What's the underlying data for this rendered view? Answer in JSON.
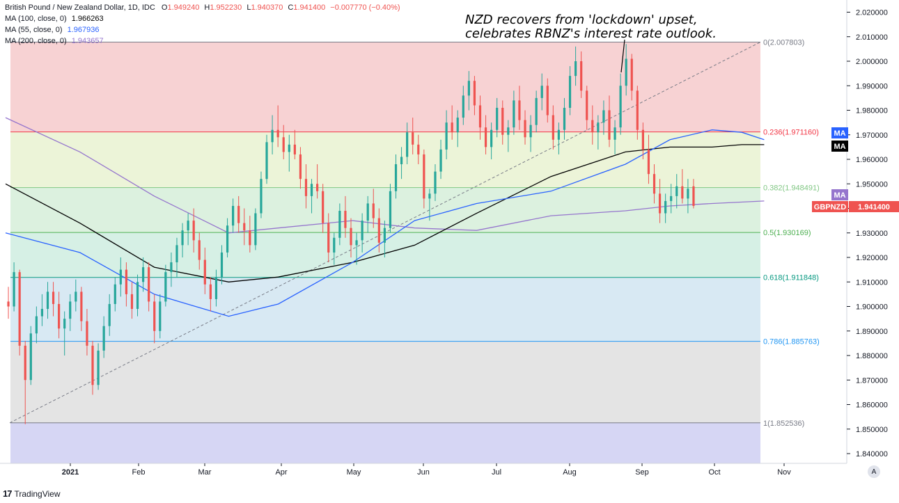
{
  "header": {
    "title": "British Pound / New Zealand Dollar, 1D, IDC",
    "ohlc": [
      {
        "label": "O",
        "value": "1.949240"
      },
      {
        "label": "H",
        "value": "1.952230"
      },
      {
        "label": "L",
        "value": "1.940370"
      },
      {
        "label": "C",
        "value": "1.941400"
      }
    ],
    "change": "−0.007770 (−0.40%)"
  },
  "indicators": [
    {
      "label": "MA (100, close, 0)",
      "value": "1.966263",
      "color": "#000000"
    },
    {
      "label": "MA (55, close, 0)",
      "value": "1.967936",
      "color": "#2962ff"
    },
    {
      "label": "MA (200, close, 0)",
      "value": "1.943657",
      "color": "#9575cd"
    }
  ],
  "annotation": {
    "line1": "NZD recovers from 'lockdown' upset,",
    "line2": "celebrates RBNZ's interest rate outlook."
  },
  "price_tags": {
    "ma_blue": "MA",
    "ma_black": "MA",
    "ma_purple": "MA",
    "symbol": "GBPNZD",
    "last": "1.941400"
  },
  "footer": {
    "brand": "TradingView",
    "auto_button": "A"
  },
  "colors": {
    "up": "#26a69a",
    "down": "#ef5350",
    "ma55": "#2962ff",
    "ma100": "#000000",
    "ma200": "#9575cd"
  },
  "chart_data": {
    "type": "candlestick",
    "symbol": "GBPNZD",
    "timeframe": "1D",
    "ylim": [
      1.836,
      2.022
    ],
    "y_ticks": [
      "2.020000",
      "2.010000",
      "2.000000",
      "1.990000",
      "1.980000",
      "1.970000",
      "1.960000",
      "1.950000",
      "1.940000",
      "1.930000",
      "1.920000",
      "1.910000",
      "1.900000",
      "1.890000",
      "1.880000",
      "1.870000",
      "1.860000",
      "1.850000",
      "1.840000"
    ],
    "x_ticks": [
      "2021",
      "Feb",
      "Mar",
      "Apr",
      "May",
      "Jun",
      "Jul",
      "Aug",
      "Sep",
      "Oct",
      "Nov"
    ],
    "fibonacci": [
      {
        "level": "0",
        "price": 2.007803,
        "label": "0(2.007803)",
        "color": "#787b86"
      },
      {
        "level": "0.236",
        "price": 1.97116,
        "label": "0.236(1.971160)",
        "color": "#f23645"
      },
      {
        "level": "0.382",
        "price": 1.948491,
        "label": "0.382(1.948491)",
        "color": "#81c784"
      },
      {
        "level": "0.5",
        "price": 1.930169,
        "label": "0.5(1.930169)",
        "color": "#4caf50"
      },
      {
        "level": "0.618",
        "price": 1.911848,
        "label": "0.618(1.911848)",
        "color": "#089981"
      },
      {
        "level": "0.786",
        "price": 1.885763,
        "label": "0.786(1.885763)",
        "color": "#2196f3"
      },
      {
        "level": "1",
        "price": 1.852536,
        "label": "1(1.852536)",
        "color": "#787b86"
      }
    ],
    "ma55_path": [
      [
        0,
        1.93
      ],
      [
        30,
        1.922
      ],
      [
        60,
        1.905
      ],
      [
        90,
        1.896
      ],
      [
        110,
        1.901
      ],
      [
        140,
        1.918
      ],
      [
        165,
        1.935
      ],
      [
        190,
        1.942
      ],
      [
        220,
        1.947
      ],
      [
        250,
        1.958
      ],
      [
        268,
        1.968
      ],
      [
        285,
        1.972
      ],
      [
        297,
        1.971
      ],
      [
        306,
        1.968
      ]
    ],
    "ma100_path": [
      [
        0,
        1.95
      ],
      [
        30,
        1.934
      ],
      [
        60,
        1.916
      ],
      [
        90,
        1.91
      ],
      [
        110,
        1.912
      ],
      [
        140,
        1.918
      ],
      [
        165,
        1.925
      ],
      [
        190,
        1.938
      ],
      [
        220,
        1.953
      ],
      [
        250,
        1.963
      ],
      [
        268,
        1.965
      ],
      [
        285,
        1.965
      ],
      [
        297,
        1.966
      ],
      [
        306,
        1.966
      ]
    ],
    "ma200_path": [
      [
        0,
        1.977
      ],
      [
        30,
        1.963
      ],
      [
        60,
        1.945
      ],
      [
        90,
        1.93
      ],
      [
        110,
        1.932
      ],
      [
        140,
        1.935
      ],
      [
        165,
        1.932
      ],
      [
        190,
        1.931
      ],
      [
        220,
        1.937
      ],
      [
        250,
        1.939
      ],
      [
        268,
        1.941
      ],
      [
        285,
        1.942
      ],
      [
        306,
        1.943
      ]
    ],
    "trendline": [
      [
        0,
        1.852536
      ],
      [
        306,
        2.007803
      ]
    ],
    "candles": [
      [
        1.902,
        1.908,
        1.895,
        1.9
      ],
      [
        1.9,
        1.918,
        1.898,
        1.914
      ],
      [
        1.914,
        1.915,
        1.88,
        1.884
      ],
      [
        1.884,
        1.886,
        1.852,
        1.87
      ],
      [
        1.87,
        1.892,
        1.868,
        1.889
      ],
      [
        1.889,
        1.9,
        1.885,
        1.896
      ],
      [
        1.896,
        1.905,
        1.892,
        1.899
      ],
      [
        1.899,
        1.91,
        1.895,
        1.906
      ],
      [
        1.906,
        1.91,
        1.896,
        1.901
      ],
      [
        1.901,
        1.906,
        1.887,
        1.891
      ],
      [
        1.891,
        1.898,
        1.88,
        1.895
      ],
      [
        1.895,
        1.905,
        1.89,
        1.902
      ],
      [
        1.902,
        1.911,
        1.898,
        1.906
      ],
      [
        1.906,
        1.908,
        1.89,
        1.894
      ],
      [
        1.894,
        1.899,
        1.88,
        1.884
      ],
      [
        1.884,
        1.886,
        1.864,
        1.868
      ],
      [
        1.868,
        1.885,
        1.866,
        1.882
      ],
      [
        1.882,
        1.896,
        1.879,
        1.892
      ],
      [
        1.892,
        1.905,
        1.888,
        1.901
      ],
      [
        1.901,
        1.912,
        1.898,
        1.909
      ],
      [
        1.909,
        1.92,
        1.904,
        1.915
      ],
      [
        1.915,
        1.918,
        1.9,
        1.905
      ],
      [
        1.905,
        1.91,
        1.895,
        1.899
      ],
      [
        1.899,
        1.913,
        1.896,
        1.91
      ],
      [
        1.91,
        1.92,
        1.906,
        1.916
      ],
      [
        1.916,
        1.918,
        1.898,
        1.902
      ],
      [
        1.902,
        1.905,
        1.885,
        1.89
      ],
      [
        1.89,
        1.905,
        1.887,
        1.902
      ],
      [
        1.902,
        1.917,
        1.9,
        1.914
      ],
      [
        1.914,
        1.922,
        1.908,
        1.918
      ],
      [
        1.918,
        1.928,
        1.912,
        1.925
      ],
      [
        1.925,
        1.934,
        1.92,
        1.931
      ],
      [
        1.931,
        1.938,
        1.925,
        1.935
      ],
      [
        1.935,
        1.94,
        1.922,
        1.927
      ],
      [
        1.927,
        1.93,
        1.915,
        1.919
      ],
      [
        1.919,
        1.924,
        1.905,
        1.909
      ],
      [
        1.909,
        1.912,
        1.898,
        1.903
      ],
      [
        1.903,
        1.915,
        1.9,
        1.912
      ],
      [
        1.912,
        1.925,
        1.909,
        1.922
      ],
      [
        1.922,
        1.936,
        1.92,
        1.933
      ],
      [
        1.933,
        1.944,
        1.93,
        1.941
      ],
      [
        1.941,
        1.945,
        1.93,
        1.934
      ],
      [
        1.934,
        1.94,
        1.925,
        1.931
      ],
      [
        1.931,
        1.937,
        1.922,
        1.925
      ],
      [
        1.925,
        1.94,
        1.923,
        1.938
      ],
      [
        1.938,
        1.955,
        1.936,
        1.952
      ],
      [
        1.952,
        1.97,
        1.95,
        1.967
      ],
      [
        1.967,
        1.978,
        1.962,
        1.972
      ],
      [
        1.972,
        1.982,
        1.965,
        1.969
      ],
      [
        1.969,
        1.974,
        1.96,
        1.963
      ],
      [
        1.963,
        1.97,
        1.955,
        1.966
      ],
      [
        1.966,
        1.972,
        1.96,
        1.962
      ],
      [
        1.962,
        1.965,
        1.948,
        1.952
      ],
      [
        1.952,
        1.958,
        1.94,
        1.945
      ],
      [
        1.945,
        1.952,
        1.938,
        1.95
      ],
      [
        1.95,
        1.958,
        1.944,
        1.947
      ],
      [
        1.947,
        1.95,
        1.93,
        1.934
      ],
      [
        1.934,
        1.938,
        1.918,
        1.922
      ],
      [
        1.922,
        1.93,
        1.917,
        1.928
      ],
      [
        1.928,
        1.942,
        1.925,
        1.939
      ],
      [
        1.939,
        1.945,
        1.928,
        1.932
      ],
      [
        1.932,
        1.936,
        1.92,
        1.925
      ],
      [
        1.925,
        1.93,
        1.917,
        1.927
      ],
      [
        1.927,
        1.938,
        1.922,
        1.935
      ],
      [
        1.935,
        1.945,
        1.93,
        1.942
      ],
      [
        1.942,
        1.948,
        1.932,
        1.936
      ],
      [
        1.936,
        1.94,
        1.922,
        1.926
      ],
      [
        1.926,
        1.935,
        1.92,
        1.932
      ],
      [
        1.932,
        1.95,
        1.93,
        1.947
      ],
      [
        1.947,
        1.962,
        1.944,
        1.958
      ],
      [
        1.958,
        1.965,
        1.952,
        1.961
      ],
      [
        1.961,
        1.975,
        1.958,
        1.971
      ],
      [
        1.971,
        1.977,
        1.962,
        1.966
      ],
      [
        1.966,
        1.97,
        1.958,
        1.962
      ],
      [
        1.962,
        1.964,
        1.94,
        1.944
      ],
      [
        1.944,
        1.948,
        1.935,
        1.946
      ],
      [
        1.946,
        1.958,
        1.943,
        1.955
      ],
      [
        1.955,
        1.968,
        1.952,
        1.964
      ],
      [
        1.964,
        1.98,
        1.96,
        1.975
      ],
      [
        1.975,
        1.982,
        1.968,
        1.971
      ],
      [
        1.971,
        1.98,
        1.965,
        1.977
      ],
      [
        1.977,
        1.99,
        1.974,
        1.986
      ],
      [
        1.986,
        1.996,
        1.98,
        1.992
      ],
      [
        1.992,
        1.994,
        1.978,
        1.982
      ],
      [
        1.982,
        1.986,
        1.968,
        1.973
      ],
      [
        1.973,
        1.978,
        1.962,
        1.965
      ],
      [
        1.965,
        1.975,
        1.96,
        1.972
      ],
      [
        1.972,
        1.985,
        1.969,
        1.981
      ],
      [
        1.981,
        1.984,
        1.966,
        1.97
      ],
      [
        1.97,
        1.976,
        1.963,
        1.973
      ],
      [
        1.973,
        1.988,
        1.97,
        1.984
      ],
      [
        1.984,
        1.99,
        1.972,
        1.976
      ],
      [
        1.976,
        1.98,
        1.966,
        1.969
      ],
      [
        1.969,
        1.978,
        1.963,
        1.974
      ],
      [
        1.974,
        1.988,
        1.971,
        1.985
      ],
      [
        1.985,
        1.995,
        1.98,
        1.99
      ],
      [
        1.99,
        1.993,
        1.975,
        1.978
      ],
      [
        1.978,
        1.982,
        1.964,
        1.968
      ],
      [
        1.968,
        1.975,
        1.962,
        1.972
      ],
      [
        1.972,
        1.985,
        1.968,
        1.981
      ],
      [
        1.981,
        1.998,
        1.978,
        1.994
      ],
      [
        1.994,
        2.006,
        1.99,
        2.0
      ],
      [
        2.0,
        2.004,
        1.985,
        1.988
      ],
      [
        1.988,
        1.99,
        1.972,
        1.976
      ],
      [
        1.976,
        1.982,
        1.966,
        1.971
      ],
      [
        1.971,
        1.978,
        1.964,
        1.975
      ],
      [
        1.975,
        1.984,
        1.97,
        1.98
      ],
      [
        1.98,
        1.986,
        1.965,
        1.968
      ],
      [
        1.968,
        1.976,
        1.962,
        1.973
      ],
      [
        1.973,
        1.995,
        1.97,
        1.99
      ],
      [
        1.99,
        2.007,
        1.986,
        2.001
      ],
      [
        2.001,
        2.003,
        1.984,
        1.988
      ],
      [
        1.988,
        1.99,
        1.968,
        1.972
      ],
      [
        1.972,
        1.975,
        1.96,
        1.964
      ],
      [
        1.964,
        1.97,
        1.95,
        1.954
      ],
      [
        1.954,
        1.958,
        1.942,
        1.946
      ],
      [
        1.946,
        1.952,
        1.934,
        1.938
      ],
      [
        1.938,
        1.946,
        1.934,
        1.943
      ],
      [
        1.943,
        1.95,
        1.938,
        1.945
      ],
      [
        1.945,
        1.954,
        1.94,
        1.949
      ],
      [
        1.949,
        1.956,
        1.942,
        1.944
      ],
      [
        1.944,
        1.952,
        1.938,
        1.948
      ],
      [
        1.949,
        1.952,
        1.94,
        1.941
      ]
    ]
  }
}
